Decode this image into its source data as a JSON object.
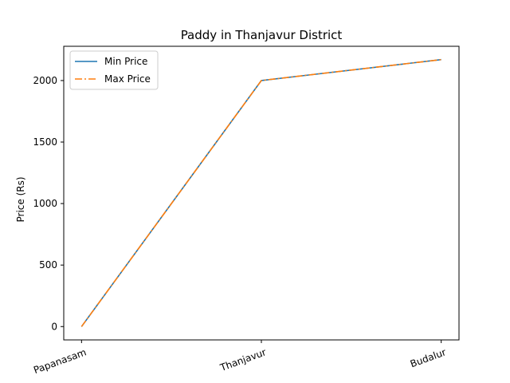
{
  "chart_data": {
    "type": "line",
    "title": "Paddy in Thanjavur District",
    "xlabel": "",
    "ylabel": "Price (Rs)",
    "categories": [
      "Papanasam",
      "Thanjavur",
      "Budalur"
    ],
    "series": [
      {
        "name": "Min Price",
        "values": [
          0,
          2000,
          2170
        ],
        "color": "#1f77b4",
        "style": "solid"
      },
      {
        "name": "Max Price",
        "values": [
          0,
          2000,
          2170
        ],
        "color": "#ff7f0e",
        "style": "dashdot"
      }
    ],
    "yticks": [
      0,
      500,
      1000,
      1500,
      2000
    ],
    "ylim": [
      -108.5,
      2278.5
    ],
    "grid": false,
    "legend": "top-left"
  }
}
